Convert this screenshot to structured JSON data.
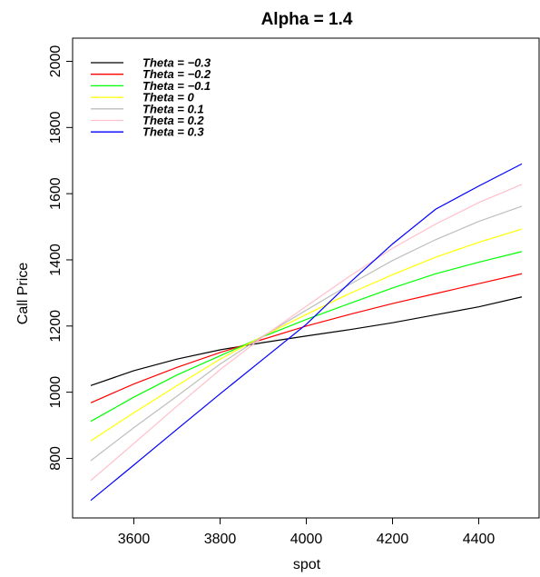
{
  "chart_data": {
    "type": "line",
    "title": "Alpha = 1.4",
    "xlabel": "spot",
    "ylabel": "Call Price",
    "xlim": [
      3500,
      4500
    ],
    "ylim": [
      620,
      2070
    ],
    "x_ticks": [
      3600,
      3800,
      4000,
      4200,
      4400
    ],
    "y_ticks": [
      800,
      1000,
      1200,
      1400,
      1600,
      1800,
      2000
    ],
    "x_tick_labels": [
      "3600",
      "3800",
      "4000",
      "4200",
      "4400"
    ],
    "y_tick_labels": [
      "800",
      "1000",
      "1200",
      "1400",
      "1600",
      "1800",
      "2000"
    ],
    "grid": false,
    "legend_position": "top-left",
    "x": [
      3500,
      3600,
      3700,
      3800,
      3900,
      4000,
      4100,
      4200,
      4300,
      4400,
      4500
    ],
    "series": [
      {
        "name": "Theta = −0.3",
        "color": "#000000",
        "values": [
          1020,
          1065,
          1100,
          1128,
          1150,
          1170,
          1189,
          1210,
          1234,
          1258,
          1288
        ]
      },
      {
        "name": "Theta = −0.2",
        "color": "#ff0000",
        "values": [
          968,
          1025,
          1075,
          1120,
          1160,
          1200,
          1235,
          1268,
          1298,
          1328,
          1358
        ]
      },
      {
        "name": "Theta = −0.1",
        "color": "#00ff00",
        "values": [
          912,
          985,
          1052,
          1110,
          1168,
          1220,
          1268,
          1315,
          1358,
          1393,
          1425
        ]
      },
      {
        "name": "Theta = 0",
        "color": "#ffff00",
        "values": [
          853,
          938,
          1020,
          1100,
          1170,
          1235,
          1298,
          1355,
          1408,
          1453,
          1493
        ]
      },
      {
        "name": "Theta = 0.1",
        "color": "#bebebe",
        "values": [
          793,
          893,
          988,
          1085,
          1170,
          1248,
          1325,
          1398,
          1461,
          1516,
          1562
        ]
      },
      {
        "name": "Theta = 0.2",
        "color": "#ffc0cb",
        "values": [
          733,
          845,
          958,
          1068,
          1168,
          1260,
          1350,
          1435,
          1508,
          1573,
          1628
        ]
      },
      {
        "name": "Theta = 0.3",
        "color": "#0000ff",
        "values": [
          673,
          780,
          888,
          995,
          1100,
          1205,
          1330,
          1448,
          1553,
          1623,
          1690
        ]
      }
    ]
  }
}
